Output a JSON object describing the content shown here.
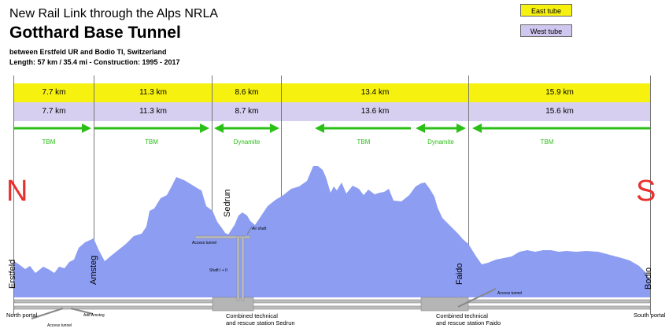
{
  "header": {
    "line1": "New Rail Link through the Alps NRLA",
    "title": "Gotthard Base Tunnel",
    "subtitle": "between Erstfeld UR and Bodio TI, Switzerland",
    "info": "Length: 57 km / 35.4 mi  -  Construction: 1995 - 2017"
  },
  "legend": {
    "east": "East tube",
    "west": "West tube"
  },
  "colors": {
    "east": "#f7f10f",
    "west": "#d7cfef",
    "arrow": "#2bbf17",
    "mountain": "#8c9df2",
    "letter": "#e8302e"
  },
  "east_segments": [
    "7.7 km",
    "11.3 km",
    "8.6 km",
    "13.4 km",
    "15.9 km"
  ],
  "west_segments": [
    "7.7 km",
    "11.3 km",
    "8.7 km",
    "13.6 km",
    "15.6 km"
  ],
  "methods": [
    "TBM",
    "TBM",
    "Dynamite",
    "TBM",
    "Dynamite",
    "TBM"
  ],
  "compass": {
    "north": "N",
    "south": "S"
  },
  "places": {
    "erstfeld": "Erstfeld",
    "amsteg": "Amsteg",
    "sedrun": "Sedrun",
    "faido": "Faido",
    "bodio": "Bodio"
  },
  "labels": {
    "north_portal": "North portal",
    "south_portal": "South portal",
    "access_tunnel_left": "Access tunnel",
    "adit_amsteg": "Adit Amsteg",
    "access_tunnel_sedrun": "Access tunnel",
    "air_shaft": "Air shaft",
    "shaft": "Shaft I + II",
    "access_tunnel_faido": "Access tunnel",
    "sedrun_station_1": "Combined technical",
    "sedrun_station_2": "and rescue station Sedrun",
    "faido_station_1": "Combined technical",
    "faido_station_2": "and rescue station Faido"
  }
}
